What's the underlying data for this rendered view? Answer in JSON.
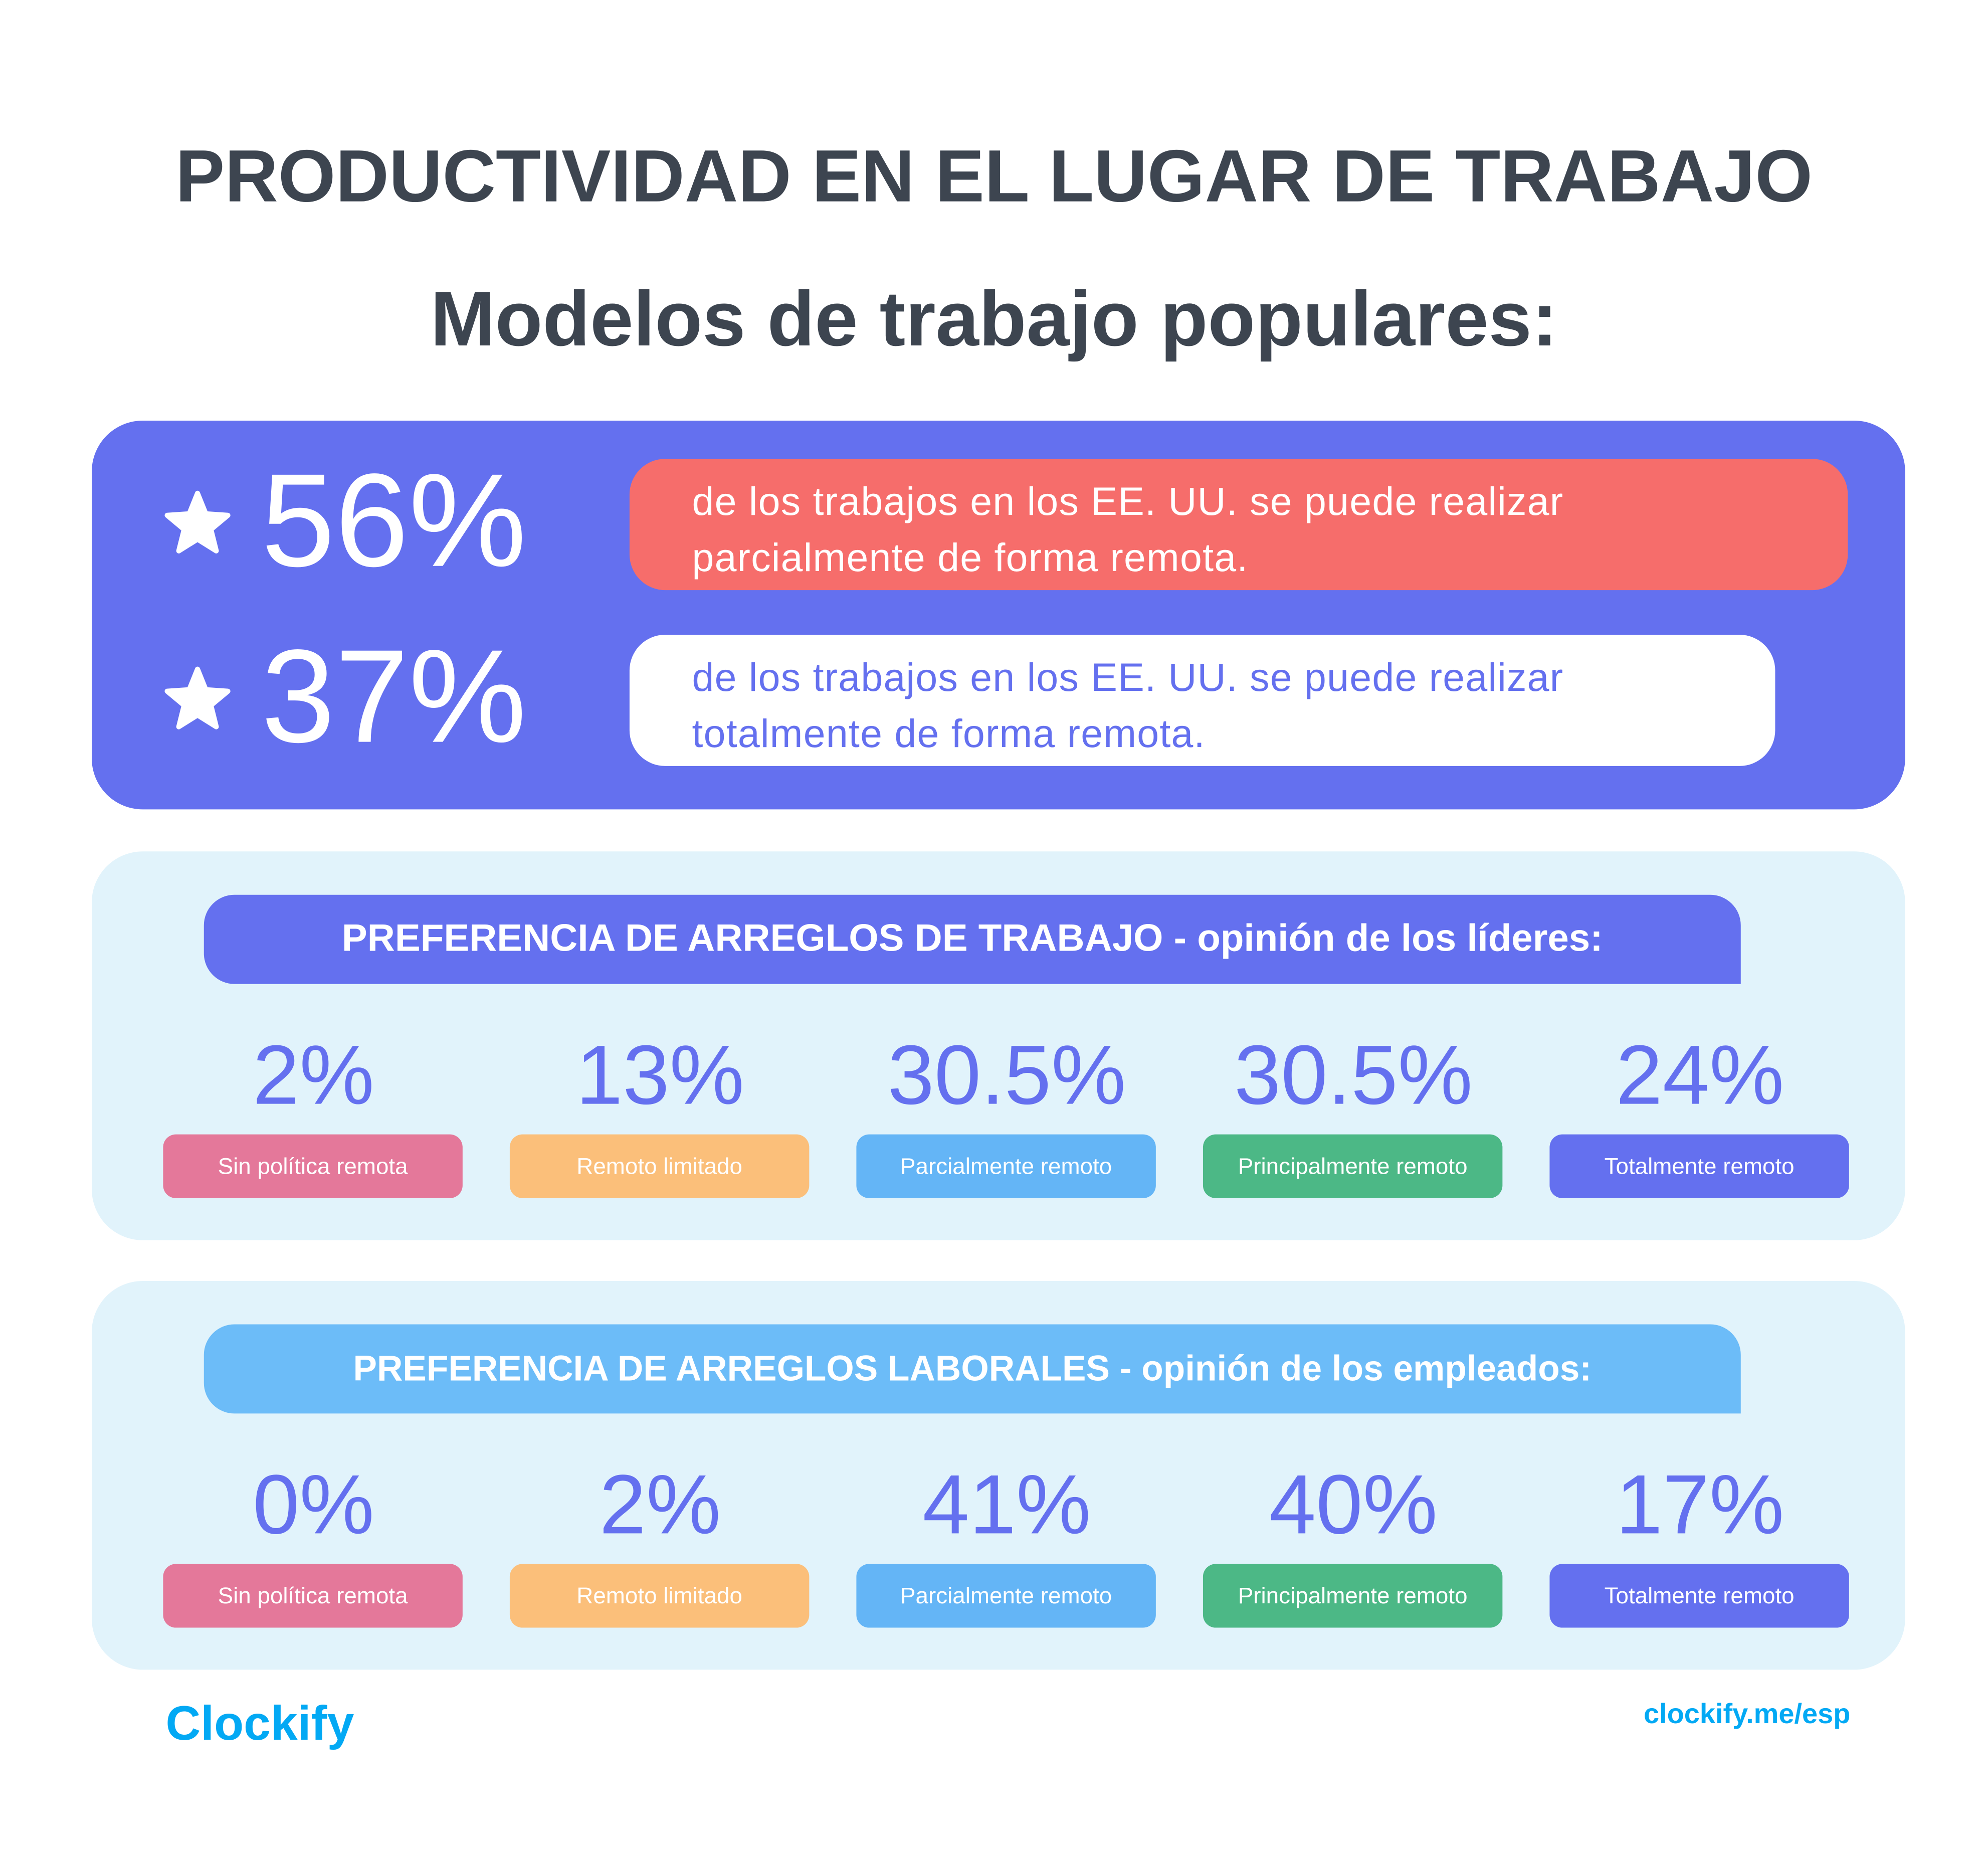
{
  "header": {
    "title": "PRODUCTIVIDAD EN EL LUGAR DE TRABAJO",
    "subtitle": "Modelos de trabajo populares:"
  },
  "highlights": [
    {
      "value": "56%",
      "lines": [
        "de los trabajos en los EE. UU. se puede realizar",
        "parcialmente de forma remota."
      ]
    },
    {
      "value": "37%",
      "lines": [
        "de los trabajos en los EE. UU. se puede realizar",
        "totalmente de forma remota."
      ]
    }
  ],
  "sections": [
    {
      "title": "PREFERENCIA DE ARREGLOS DE TRABAJO - opinión de los líderes:",
      "items": [
        {
          "value": "2%",
          "label": "Sin política remota"
        },
        {
          "value": "13%",
          "label": "Remoto limitado"
        },
        {
          "value": "30.5%",
          "label": "Parcialmente remoto"
        },
        {
          "value": "30.5%",
          "label": "Principalmente remoto"
        },
        {
          "value": "24%",
          "label": "Totalmente remoto"
        }
      ]
    },
    {
      "title": "PREFERENCIA DE ARREGLOS LABORALES - opinión de los empleados:",
      "items": [
        {
          "value": "0%",
          "label": "Sin política remota"
        },
        {
          "value": "2%",
          "label": "Remoto limitado"
        },
        {
          "value": "41%",
          "label": "Parcialmente remoto"
        },
        {
          "value": "40%",
          "label": "Principalmente remoto"
        },
        {
          "value": "17%",
          "label": "Totalmente remoto"
        }
      ]
    }
  ],
  "footer": {
    "logo": "Clockify",
    "url": "clockify.me/esp"
  }
}
